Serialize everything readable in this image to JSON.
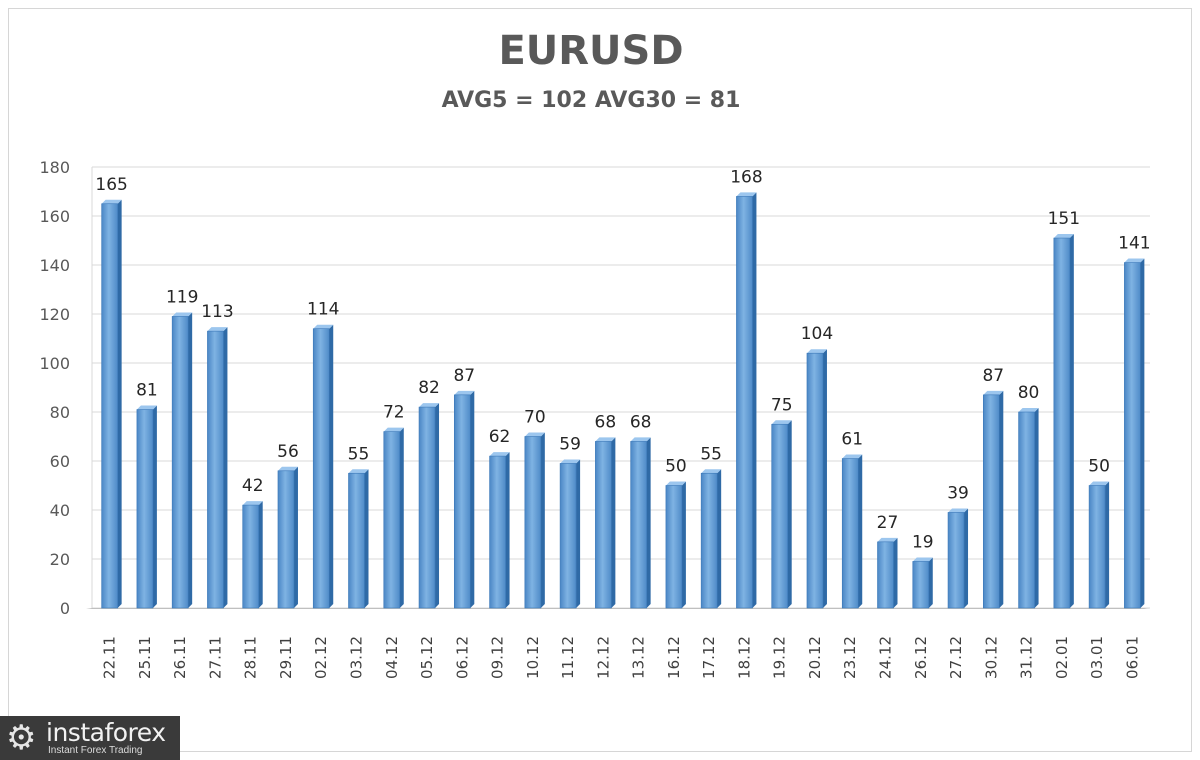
{
  "chart_data": {
    "type": "bar",
    "title": "EURUSD",
    "subtitle": "AVG5 = 102 AVG30 = 81",
    "xlabel": "",
    "ylabel": "",
    "ylim": [
      0,
      180
    ],
    "yticks": [
      0,
      20,
      40,
      60,
      80,
      100,
      120,
      140,
      160,
      180
    ],
    "grid": true,
    "legend": "none",
    "bar_color": "#5b9bd5",
    "categories": [
      "22.11",
      "25.11",
      "26.11",
      "27.11",
      "28.11",
      "29.11",
      "02.12",
      "03.12",
      "04.12",
      "05.12",
      "06.12",
      "09.12",
      "10.12",
      "11.12",
      "12.12",
      "13.12",
      "16.12",
      "17.12",
      "18.12",
      "19.12",
      "20.12",
      "23.12",
      "24.12",
      "26.12",
      "27.12",
      "30.12",
      "31.12",
      "02.01",
      "03.01",
      "06.01"
    ],
    "values": [
      165,
      81,
      119,
      113,
      42,
      56,
      114,
      55,
      72,
      82,
      87,
      62,
      70,
      59,
      68,
      68,
      50,
      55,
      168,
      75,
      104,
      61,
      27,
      19,
      39,
      87,
      80,
      151,
      50,
      141
    ]
  },
  "watermark": {
    "brand": "instaforex",
    "tagline": "Instant Forex Trading",
    "icon": "gear-icon"
  }
}
